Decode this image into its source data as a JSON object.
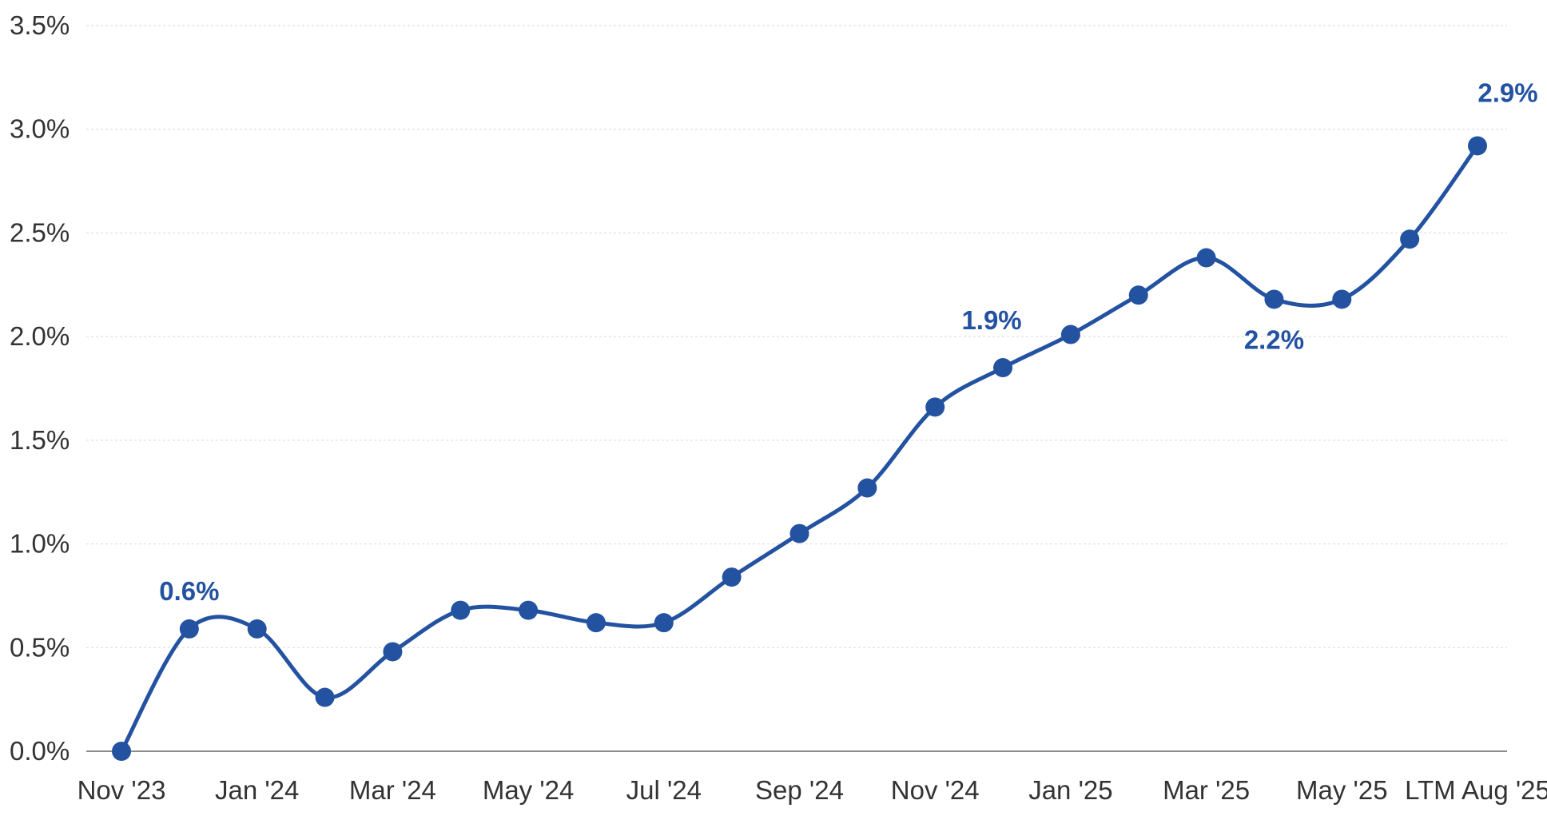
{
  "chart_data": {
    "type": "line",
    "title": "",
    "xlabel": "",
    "ylabel": "",
    "x": [
      "Nov '23",
      "Dec '23",
      "Jan '24",
      "Feb '24",
      "Mar '24",
      "Apr '24",
      "May '24",
      "Jun '24",
      "Jul '24",
      "Aug '24",
      "Sep '24",
      "Oct '24",
      "Nov '24",
      "Dec '24",
      "Jan '25",
      "Feb '25",
      "Mar '25",
      "Apr '25",
      "May '25",
      "Jun '25",
      "LTM Aug '25"
    ],
    "x_tick_labels": [
      "Nov '23",
      "Jan '24",
      "Mar '24",
      "May '24",
      "Jul '24",
      "Sep '24",
      "Nov '24",
      "Jan '25",
      "Mar '25",
      "May '25",
      "LTM Aug '25"
    ],
    "series": [
      {
        "values": [
          0.0,
          0.59,
          0.59,
          0.26,
          0.48,
          0.68,
          0.68,
          0.62,
          0.62,
          0.84,
          1.05,
          1.27,
          1.66,
          1.85,
          2.01,
          2.2,
          2.38,
          2.18,
          2.18,
          2.47,
          2.92
        ],
        "color": "#2352A1"
      }
    ],
    "annotations": [
      {
        "index": 1,
        "text": "0.6%",
        "position": "above"
      },
      {
        "index": 13,
        "text": "1.9%",
        "position": "above-left"
      },
      {
        "index": 17,
        "text": "2.2%",
        "position": "below"
      },
      {
        "index": 20,
        "text": "2.9%",
        "position": "above"
      }
    ],
    "ylim": [
      0,
      3.5
    ],
    "y_ticks": [
      0,
      0.5,
      1.0,
      1.5,
      2.0,
      2.5,
      3.0,
      3.5
    ],
    "y_tick_labels": [
      "0.0%",
      "0.5%",
      "1.0%",
      "1.5%",
      "2.0%",
      "2.5%",
      "3.0%",
      "3.5%"
    ],
    "grid": true,
    "legend": "none",
    "smooth": true
  }
}
